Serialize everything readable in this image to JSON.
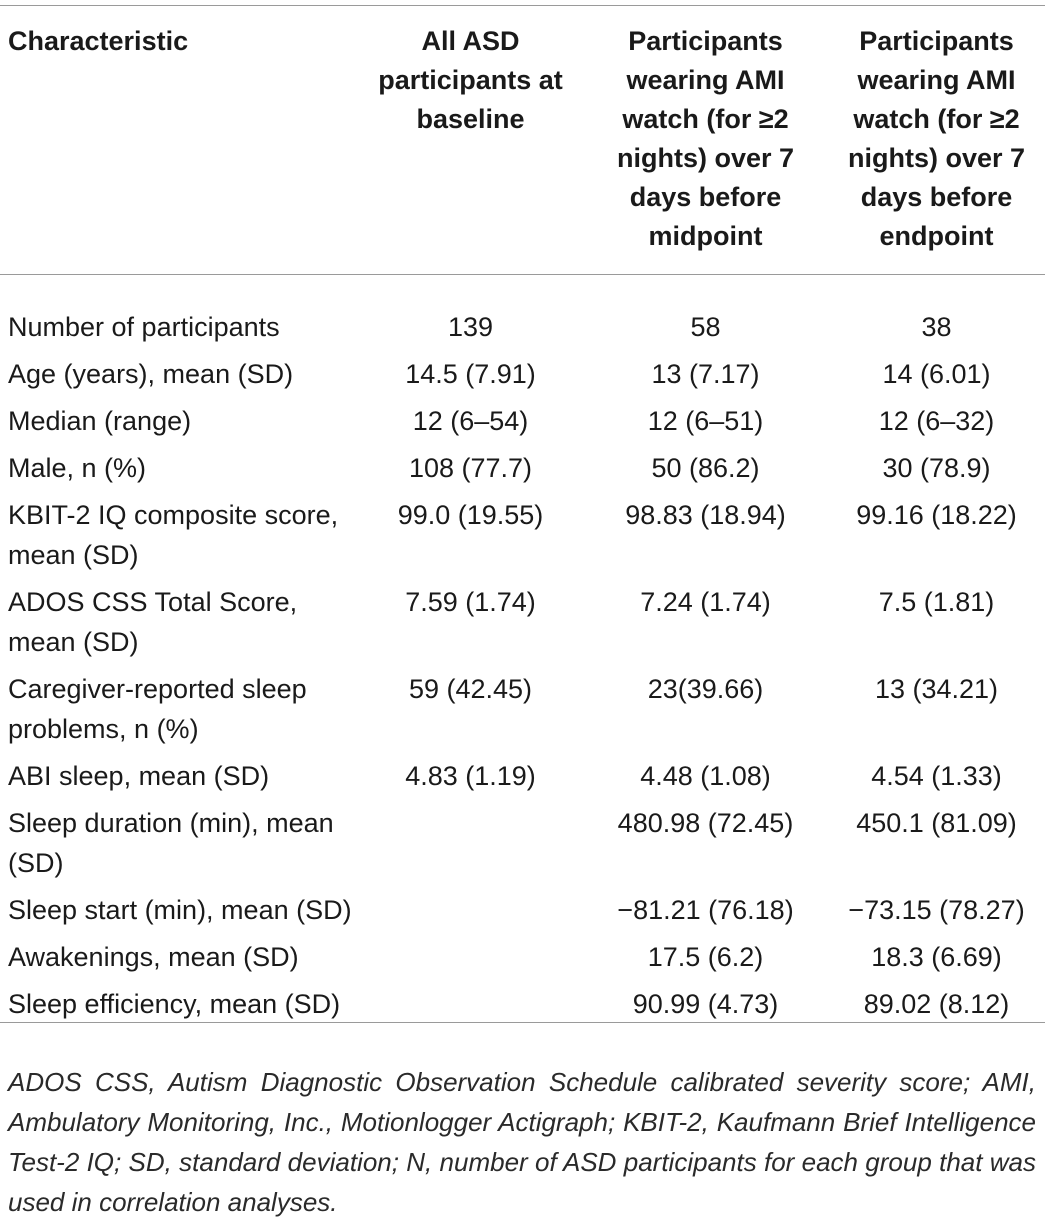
{
  "table": {
    "headers": [
      "Characteristic",
      "All ASD participants at baseline",
      "Participants wearing AMI watch (for ≥2 nights) over 7 days before midpoint",
      "Participants wearing AMI watch (for ≥2 nights) over 7 days before endpoint"
    ],
    "rows": [
      [
        "Number of participants",
        "139",
        "58",
        "38"
      ],
      [
        "Age (years), mean (SD)",
        "14.5 (7.91)",
        "13 (7.17)",
        "14 (6.01)"
      ],
      [
        "Median (range)",
        "12 (6–54)",
        "12 (6–51)",
        "12 (6–32)"
      ],
      [
        "Male, n (%)",
        "108 (77.7)",
        "50 (86.2)",
        "30 (78.9)"
      ],
      [
        "KBIT-2 IQ composite score, mean (SD)",
        "99.0 (19.55)",
        "98.83 (18.94)",
        "99.16 (18.22)"
      ],
      [
        "ADOS CSS Total Score, mean (SD)",
        "7.59 (1.74)",
        "7.24 (1.74)",
        "7.5 (1.81)"
      ],
      [
        "Caregiver-reported sleep problems, n (%)",
        "59 (42.45)",
        "23(39.66)",
        "13 (34.21)"
      ],
      [
        "ABI sleep, mean (SD)",
        "4.83 (1.19)",
        "4.48 (1.08)",
        "4.54 (1.33)"
      ],
      [
        "Sleep duration (min), mean (SD)",
        "",
        "480.98 (72.45)",
        "450.1 (81.09)"
      ],
      [
        "Sleep start (min), mean (SD)",
        "",
        "−81.21 (76.18)",
        "−73.15 (78.27)"
      ],
      [
        "Awakenings, mean (SD)",
        "",
        "17.5 (6.2)",
        "18.3 (6.69)"
      ],
      [
        "Sleep efficiency, mean (SD)",
        "",
        "90.99 (4.73)",
        "89.02 (8.12)"
      ]
    ]
  },
  "footnote": "ADOS CSS, Autism Diagnostic Observation Schedule calibrated severity score; AMI, Ambulatory Monitoring, Inc., Motionlogger Actigraph; KBIT-2, Kaufmann Brief Intelligence Test-2 IQ; SD, standard deviation; N, number of ASD participants for each group that was used in correlation analyses."
}
